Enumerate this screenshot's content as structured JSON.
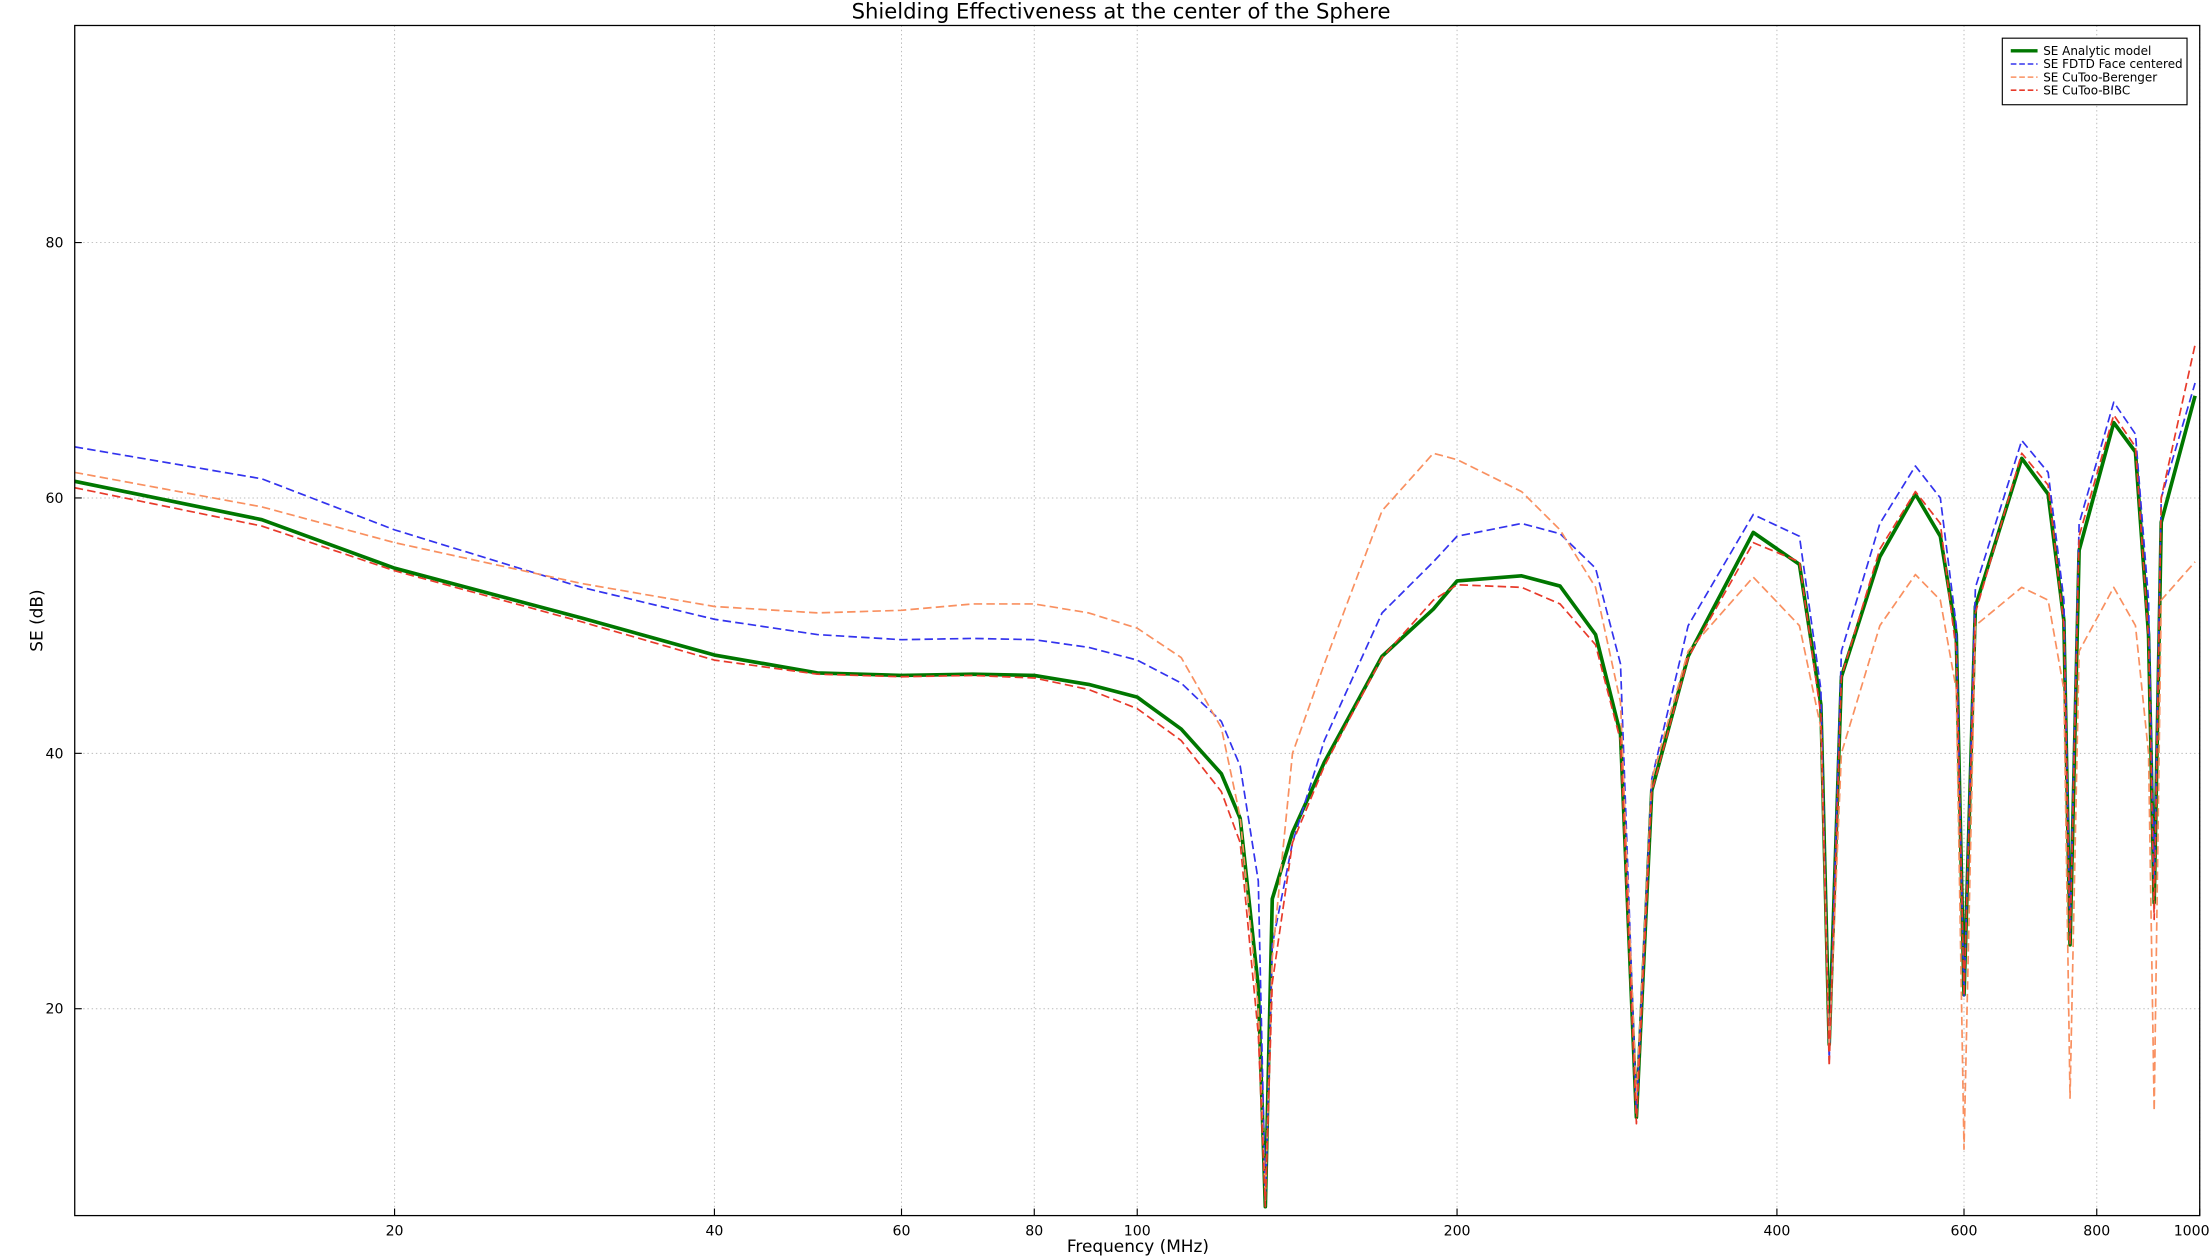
{
  "chart_data": {
    "type": "line",
    "title": "Shielding Effectiveness at the center of the Sphere",
    "x_label": "Frequency (MHz)",
    "y_label": "SE (dB)",
    "xscale": "log",
    "grid": true,
    "legend": "upper right",
    "xlim": [
      10,
      1000
    ],
    "ylim": [
      3.8,
      97
    ],
    "xticks": [
      20,
      40,
      60,
      80,
      100,
      200,
      400,
      600,
      800,
      1000
    ],
    "yticks": [
      20,
      40,
      60,
      80
    ],
    "x": [
      10,
      15,
      20,
      30,
      40,
      50,
      60,
      70,
      80,
      90,
      100,
      110,
      120,
      125,
      130,
      132,
      134,
      140,
      150,
      170,
      190,
      200,
      230,
      250,
      270,
      285,
      295,
      305,
      330,
      380,
      420,
      440,
      448,
      460,
      500,
      540,
      570,
      590,
      600,
      615,
      680,
      720,
      745,
      755,
      770,
      830,
      870,
      895,
      906,
      920,
      990
    ],
    "series": [
      {
        "name": "SE Analytic model",
        "color": "#007700",
        "linestyle": "-",
        "values": [
          61.3,
          58.3,
          54.5,
          50.6,
          47.7,
          46.3,
          46.1,
          46.2,
          46.1,
          45.4,
          44.4,
          41.9,
          38.4,
          34.9,
          21.7,
          4.5,
          28.6,
          33.8,
          39.3,
          47.6,
          51.3,
          53.5,
          53.9,
          53.1,
          49.3,
          41.5,
          11.5,
          37.1,
          47.6,
          57.3,
          54.8,
          43.8,
          17.2,
          46,
          55.4,
          60.3,
          57,
          49.3,
          21.1,
          51.5,
          63.1,
          60.3,
          50.4,
          25,
          55.9,
          65.9,
          63.6,
          49.3,
          28.3,
          58.1,
          68
        ]
      },
      {
        "name": "SE FDTD Face centered",
        "color": "#3333ee",
        "linestyle": "--",
        "values": [
          64,
          61.5,
          57.5,
          53,
          50.5,
          49.3,
          48.9,
          49,
          48.9,
          48.3,
          47.3,
          45.5,
          42.5,
          39,
          30,
          5,
          25,
          33,
          41,
          51,
          55,
          57,
          58,
          57.2,
          54.5,
          47,
          12,
          38,
          50,
          58.7,
          57,
          45,
          16,
          48,
          58,
          62.5,
          60,
          50,
          21,
          53,
          64.5,
          62,
          52,
          26,
          58,
          67.5,
          65,
          52,
          30,
          60,
          69
        ]
      },
      {
        "name": "SE CuToo-Berenger",
        "color": "#f99060",
        "linestyle": "--",
        "values": [
          62,
          59.3,
          56.5,
          53.3,
          51.5,
          51,
          51.2,
          51.7,
          51.7,
          51,
          49.8,
          47.5,
          42,
          35,
          20,
          5,
          24,
          40,
          47,
          59,
          63.5,
          63,
          60.5,
          57.5,
          53,
          44,
          13,
          38,
          48,
          53.8,
          50,
          42,
          17,
          40,
          50,
          54,
          52,
          45,
          9,
          50,
          53,
          52,
          45,
          13,
          48,
          53,
          50,
          40,
          12,
          52,
          55
        ]
      },
      {
        "name": "SE CuToo-BIBC",
        "color": "#e83a2a",
        "linestyle": "--",
        "values": [
          60.8,
          57.8,
          54.3,
          50.3,
          47.3,
          46.2,
          46,
          46.1,
          45.9,
          45,
          43.5,
          41,
          37,
          33,
          18,
          4.5,
          22,
          33,
          39,
          47.5,
          52,
          53.2,
          53,
          51.7,
          48.5,
          41,
          11,
          37,
          47.5,
          56.5,
          55,
          43,
          15.5,
          46,
          56,
          60.5,
          58,
          48,
          21,
          51,
          63.5,
          61,
          50,
          25,
          57,
          66.5,
          64,
          49,
          27,
          60,
          72
        ]
      }
    ]
  }
}
